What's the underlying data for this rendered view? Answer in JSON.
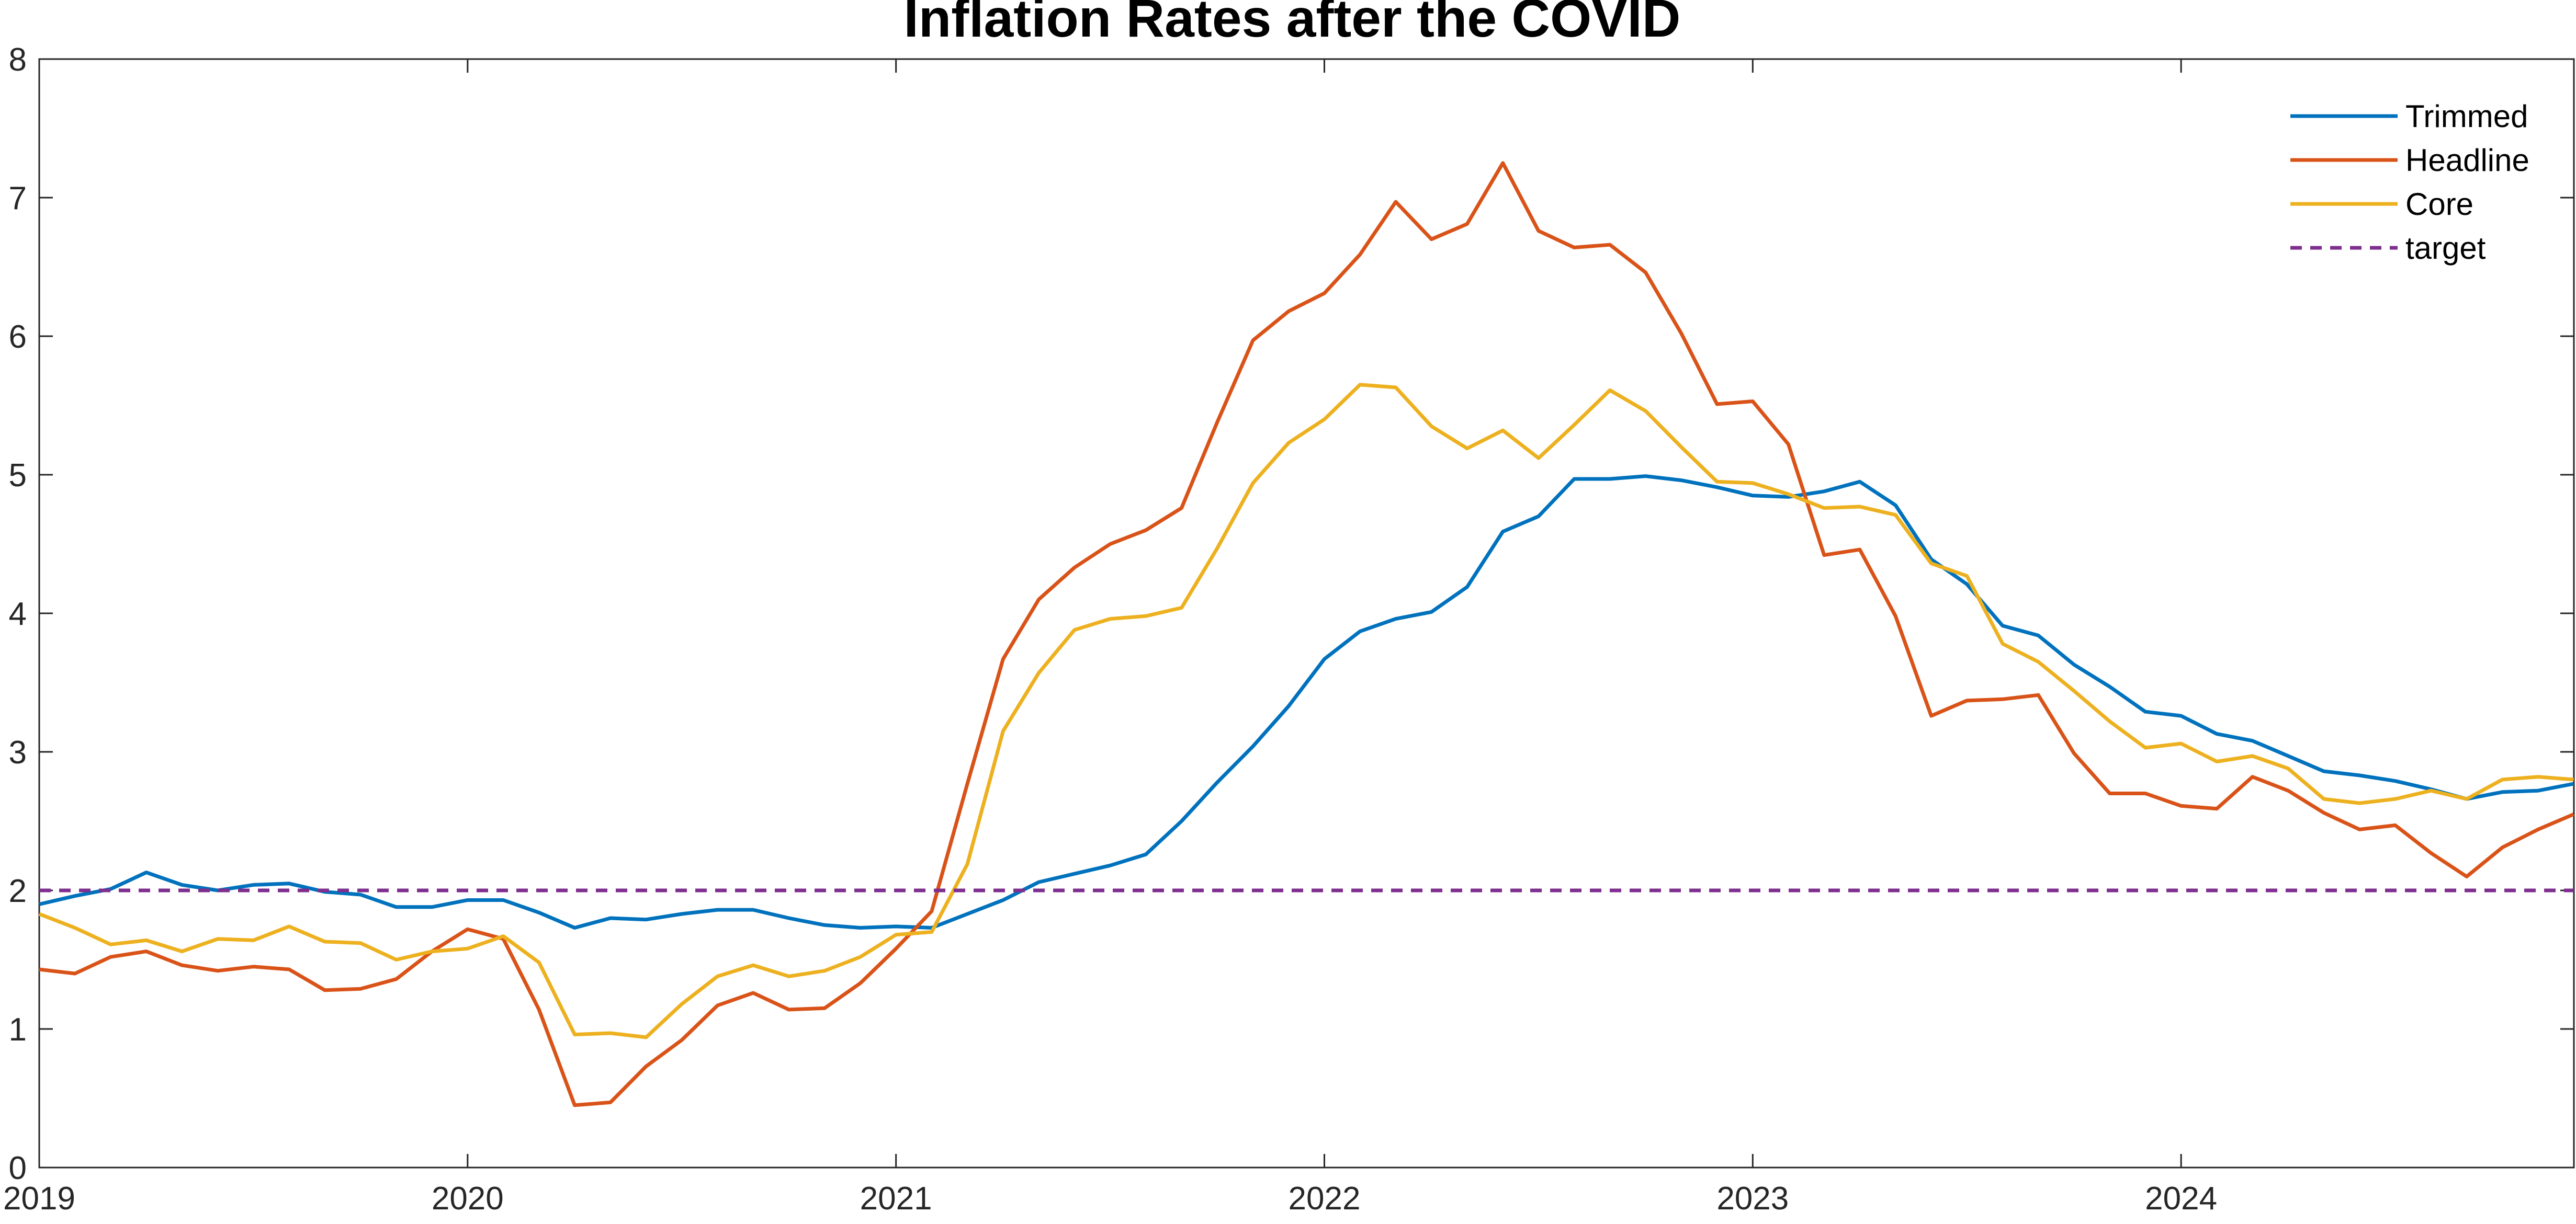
{
  "chart_data": {
    "type": "line",
    "title": "Inflation Rates after the COVID",
    "xlabel": "",
    "ylabel": "",
    "xlim": [
      2019,
      2024.917
    ],
    "ylim": [
      0,
      8
    ],
    "x_ticks": [
      "2019",
      "2020",
      "2021",
      "2022",
      "2023",
      "2024"
    ],
    "y_ticks": [
      "0",
      "1",
      "2",
      "3",
      "4",
      "5",
      "6",
      "7",
      "8"
    ],
    "grid": false,
    "legend_position": "top-right",
    "x_start": "2019-01",
    "x_step": "month",
    "series": [
      {
        "name": "Trimmed",
        "color": "#0072BD",
        "style": "solid",
        "values": [
          1.9,
          1.96,
          2.01,
          2.13,
          2.04,
          2.0,
          2.04,
          2.05,
          1.99,
          1.97,
          1.88,
          1.88,
          1.93,
          1.93,
          1.84,
          1.73,
          1.8,
          1.79,
          1.83,
          1.86,
          1.86,
          1.8,
          1.75,
          1.73,
          1.74,
          1.73,
          1.83,
          1.93,
          2.06,
          2.12,
          2.18,
          2.26,
          2.5,
          2.78,
          3.04,
          3.33,
          3.67,
          3.87,
          3.96,
          4.01,
          4.19,
          4.59,
          4.7,
          4.97,
          4.97,
          4.99,
          4.96,
          4.91,
          4.85,
          4.84,
          4.88,
          4.95,
          4.78,
          4.39,
          4.21,
          3.91,
          3.84,
          3.63,
          3.47,
          3.29,
          3.26,
          3.13,
          3.08,
          2.97,
          2.86,
          2.83,
          2.79,
          2.73,
          2.66,
          2.71,
          2.72,
          2.77
        ]
      },
      {
        "name": "Headline",
        "color": "#D95319",
        "style": "solid",
        "values": [
          1.43,
          1.4,
          1.52,
          1.56,
          1.46,
          1.42,
          1.45,
          1.43,
          1.28,
          1.29,
          1.36,
          1.56,
          1.72,
          1.65,
          1.14,
          0.45,
          0.47,
          0.73,
          0.92,
          1.17,
          1.26,
          1.14,
          1.15,
          1.33,
          1.58,
          1.85,
          2.77,
          3.67,
          4.1,
          4.33,
          4.5,
          4.6,
          4.76,
          5.38,
          5.97,
          6.18,
          6.31,
          6.59,
          6.97,
          6.7,
          6.81,
          7.25,
          6.76,
          6.64,
          6.66,
          6.46,
          6.02,
          5.51,
          5.53,
          5.22,
          4.42,
          4.46,
          3.98,
          3.26,
          3.37,
          3.38,
          3.41,
          2.99,
          2.7,
          2.7,
          2.61,
          2.59,
          2.82,
          2.72,
          2.56,
          2.44,
          2.47,
          2.27,
          2.1,
          2.31,
          2.44,
          2.55
        ]
      },
      {
        "name": "Core",
        "color": "#EDB120",
        "style": "solid",
        "values": [
          1.83,
          1.73,
          1.61,
          1.64,
          1.56,
          1.65,
          1.64,
          1.74,
          1.63,
          1.62,
          1.5,
          1.56,
          1.58,
          1.67,
          1.48,
          0.96,
          0.97,
          0.94,
          1.18,
          1.38,
          1.46,
          1.38,
          1.42,
          1.52,
          1.68,
          1.7,
          2.19,
          3.15,
          3.57,
          3.88,
          3.96,
          3.98,
          4.04,
          4.47,
          4.94,
          5.23,
          5.4,
          5.65,
          5.63,
          5.35,
          5.19,
          5.32,
          5.12,
          5.36,
          5.61,
          5.46,
          5.2,
          4.95,
          4.94,
          4.86,
          4.76,
          4.77,
          4.71,
          4.36,
          4.27,
          3.78,
          3.65,
          3.44,
          3.22,
          3.03,
          3.06,
          2.93,
          2.97,
          2.88,
          2.66,
          2.63,
          2.66,
          2.72,
          2.66,
          2.8,
          2.82,
          2.8
        ]
      },
      {
        "name": "target",
        "color": "#7E2F8E",
        "style": "dashed",
        "values": [
          2.0,
          2.0
        ]
      }
    ]
  }
}
